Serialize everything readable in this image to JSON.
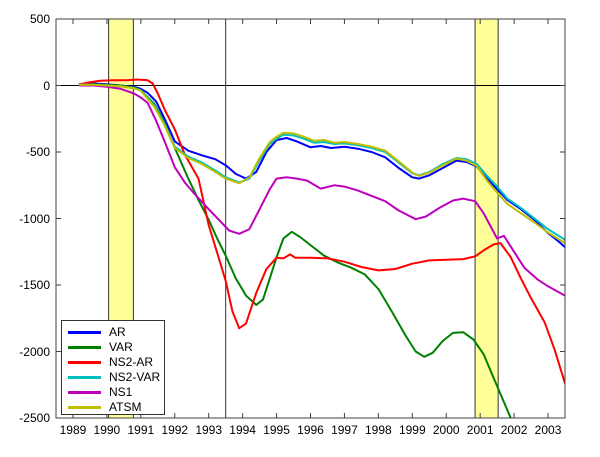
{
  "chart_data": {
    "type": "line",
    "title": "",
    "xlabel": "",
    "ylabel": "",
    "xlim": [
      1988.5,
      2003.5
    ],
    "ylim": [
      -2500,
      500
    ],
    "x_ticks": [
      "1989",
      "1990",
      "1991",
      "1992",
      "1993",
      "1994",
      "1995",
      "1996",
      "1997",
      "1998",
      "1999",
      "2000",
      "2001",
      "2002",
      "2003"
    ],
    "x_tick_values": [
      1989,
      1990,
      1991,
      1992,
      1993,
      1994,
      1995,
      1996,
      1997,
      1998,
      1999,
      2000,
      2001,
      2002,
      2003
    ],
    "y_ticks": [
      "500",
      "0",
      "-500",
      "-1000",
      "-1500",
      "-2000",
      "-2500"
    ],
    "y_tick_values": [
      500,
      0,
      -500,
      -1000,
      -1500,
      -2000,
      -2500
    ],
    "grid": false,
    "zero_line_value": 0,
    "vertical_reference_lines": [
      1993.5
    ],
    "shaded_bands": [
      {
        "from": 1990.05,
        "to": 1990.78,
        "color": "#FFFF99"
      },
      {
        "from": 2000.85,
        "to": 2001.53,
        "color": "#FFFF99"
      }
    ],
    "axis_color": "#404040",
    "zero_line_color": "#000000",
    "legend_position": "bottom-left",
    "series": [
      {
        "name": "AR",
        "color": "#0000FF",
        "points": [
          [
            1989.2,
            10
          ],
          [
            1989.6,
            15
          ],
          [
            1990,
            10
          ],
          [
            1990.4,
            0
          ],
          [
            1990.8,
            -10
          ],
          [
            1991,
            -25
          ],
          [
            1991.2,
            -55
          ],
          [
            1991.45,
            -120
          ],
          [
            1991.7,
            -250
          ],
          [
            1992,
            -420
          ],
          [
            1992.4,
            -490
          ],
          [
            1992.8,
            -525
          ],
          [
            1993.2,
            -555
          ],
          [
            1993.5,
            -600
          ],
          [
            1993.8,
            -665
          ],
          [
            1994.1,
            -700
          ],
          [
            1994.4,
            -650
          ],
          [
            1994.7,
            -500
          ],
          [
            1995,
            -410
          ],
          [
            1995.3,
            -395
          ],
          [
            1995.6,
            -420
          ],
          [
            1996,
            -465
          ],
          [
            1996.3,
            -455
          ],
          [
            1996.6,
            -470
          ],
          [
            1997,
            -460
          ],
          [
            1997.4,
            -475
          ],
          [
            1997.8,
            -500
          ],
          [
            1998.2,
            -540
          ],
          [
            1998.6,
            -620
          ],
          [
            1999,
            -690
          ],
          [
            1999.2,
            -700
          ],
          [
            1999.5,
            -675
          ],
          [
            1999.9,
            -620
          ],
          [
            2000.3,
            -565
          ],
          [
            2000.6,
            -575
          ],
          [
            2000.9,
            -610
          ],
          [
            2001.2,
            -700
          ],
          [
            2001.5,
            -780
          ],
          [
            2001.8,
            -860
          ],
          [
            2002.2,
            -930
          ],
          [
            2002.6,
            -1010
          ],
          [
            2003,
            -1110
          ],
          [
            2003.3,
            -1170
          ],
          [
            2003.5,
            -1215
          ]
        ]
      },
      {
        "name": "VAR",
        "color": "#008000",
        "points": [
          [
            1989.2,
            5
          ],
          [
            1989.6,
            10
          ],
          [
            1990,
            5
          ],
          [
            1990.4,
            0
          ],
          [
            1990.8,
            -15
          ],
          [
            1991,
            -35
          ],
          [
            1991.4,
            -140
          ],
          [
            1991.7,
            -280
          ],
          [
            1992,
            -470
          ],
          [
            1992.4,
            -700
          ],
          [
            1992.7,
            -860
          ],
          [
            1993,
            -1010
          ],
          [
            1993.25,
            -1150
          ],
          [
            1993.5,
            -1280
          ],
          [
            1993.8,
            -1450
          ],
          [
            1994.1,
            -1580
          ],
          [
            1994.4,
            -1650
          ],
          [
            1994.6,
            -1610
          ],
          [
            1994.8,
            -1450
          ],
          [
            1995,
            -1290
          ],
          [
            1995.2,
            -1150
          ],
          [
            1995.45,
            -1100
          ],
          [
            1995.7,
            -1140
          ],
          [
            1996,
            -1200
          ],
          [
            1996.4,
            -1280
          ],
          [
            1996.8,
            -1330
          ],
          [
            1997.2,
            -1370
          ],
          [
            1997.6,
            -1420
          ],
          [
            1998,
            -1530
          ],
          [
            1998.4,
            -1700
          ],
          [
            1998.8,
            -1880
          ],
          [
            1999.1,
            -2000
          ],
          [
            1999.35,
            -2040
          ],
          [
            1999.6,
            -2010
          ],
          [
            1999.9,
            -1920
          ],
          [
            2000.2,
            -1860
          ],
          [
            2000.5,
            -1855
          ],
          [
            2000.8,
            -1910
          ],
          [
            2001.1,
            -2020
          ],
          [
            2001.4,
            -2200
          ],
          [
            2001.7,
            -2380
          ],
          [
            2001.95,
            -2530
          ]
        ]
      },
      {
        "name": "NS2-AR",
        "color": "#FF0000",
        "points": [
          [
            1989.2,
            10
          ],
          [
            1989.5,
            25
          ],
          [
            1989.8,
            35
          ],
          [
            1990.2,
            40
          ],
          [
            1990.6,
            40
          ],
          [
            1990.9,
            45
          ],
          [
            1991.2,
            40
          ],
          [
            1991.35,
            15
          ],
          [
            1991.5,
            -60
          ],
          [
            1991.7,
            -180
          ],
          [
            1992,
            -330
          ],
          [
            1992.3,
            -520
          ],
          [
            1992.7,
            -700
          ],
          [
            1993,
            -1050
          ],
          [
            1993.3,
            -1300
          ],
          [
            1993.5,
            -1470
          ],
          [
            1993.7,
            -1700
          ],
          [
            1993.9,
            -1825
          ],
          [
            1994.1,
            -1790
          ],
          [
            1994.4,
            -1560
          ],
          [
            1994.7,
            -1380
          ],
          [
            1995,
            -1295
          ],
          [
            1995.2,
            -1300
          ],
          [
            1995.4,
            -1270
          ],
          [
            1995.55,
            -1295
          ],
          [
            1996,
            -1295
          ],
          [
            1996.5,
            -1300
          ],
          [
            1997,
            -1325
          ],
          [
            1997.5,
            -1365
          ],
          [
            1998,
            -1390
          ],
          [
            1998.5,
            -1380
          ],
          [
            1999,
            -1340
          ],
          [
            1999.5,
            -1315
          ],
          [
            2000,
            -1310
          ],
          [
            2000.5,
            -1305
          ],
          [
            2000.85,
            -1285
          ],
          [
            2001.1,
            -1240
          ],
          [
            2001.4,
            -1195
          ],
          [
            2001.6,
            -1185
          ],
          [
            2001.9,
            -1290
          ],
          [
            2002.2,
            -1450
          ],
          [
            2002.5,
            -1600
          ],
          [
            2002.9,
            -1780
          ],
          [
            2003.2,
            -1990
          ],
          [
            2003.5,
            -2240
          ]
        ]
      },
      {
        "name": "NS2-VAR",
        "color": "#00BFBF",
        "points": [
          [
            1989.2,
            5
          ],
          [
            1989.6,
            5
          ],
          [
            1990,
            0
          ],
          [
            1990.4,
            -5
          ],
          [
            1990.8,
            -20
          ],
          [
            1991,
            -35
          ],
          [
            1991.4,
            -150
          ],
          [
            1991.7,
            -290
          ],
          [
            1992,
            -460
          ],
          [
            1992.4,
            -535
          ],
          [
            1992.8,
            -580
          ],
          [
            1993.2,
            -640
          ],
          [
            1993.5,
            -690
          ],
          [
            1993.9,
            -730
          ],
          [
            1994.2,
            -700
          ],
          [
            1994.5,
            -560
          ],
          [
            1994.8,
            -440
          ],
          [
            1995,
            -400
          ],
          [
            1995.2,
            -370
          ],
          [
            1995.5,
            -375
          ],
          [
            1995.8,
            -400
          ],
          [
            1996.1,
            -430
          ],
          [
            1996.4,
            -425
          ],
          [
            1996.7,
            -440
          ],
          [
            1997,
            -435
          ],
          [
            1997.4,
            -450
          ],
          [
            1997.8,
            -470
          ],
          [
            1998.2,
            -500
          ],
          [
            1998.6,
            -580
          ],
          [
            1999,
            -660
          ],
          [
            1999.2,
            -675
          ],
          [
            1999.5,
            -650
          ],
          [
            1999.9,
            -590
          ],
          [
            2000.3,
            -545
          ],
          [
            2000.6,
            -555
          ],
          [
            2000.9,
            -590
          ],
          [
            2001.2,
            -680
          ],
          [
            2001.5,
            -760
          ],
          [
            2001.8,
            -850
          ],
          [
            2002.2,
            -920
          ],
          [
            2002.6,
            -1000
          ],
          [
            2003,
            -1080
          ],
          [
            2003.5,
            -1160
          ]
        ]
      },
      {
        "name": "NS1",
        "color": "#BF00BF",
        "points": [
          [
            1989.2,
            0
          ],
          [
            1989.6,
            0
          ],
          [
            1990,
            -10
          ],
          [
            1990.4,
            -25
          ],
          [
            1990.8,
            -60
          ],
          [
            1991,
            -90
          ],
          [
            1991.2,
            -130
          ],
          [
            1991.45,
            -265
          ],
          [
            1991.7,
            -420
          ],
          [
            1992,
            -615
          ],
          [
            1992.3,
            -730
          ],
          [
            1992.6,
            -820
          ],
          [
            1993,
            -930
          ],
          [
            1993.3,
            -1010
          ],
          [
            1993.6,
            -1090
          ],
          [
            1993.9,
            -1115
          ],
          [
            1994.2,
            -1080
          ],
          [
            1994.5,
            -930
          ],
          [
            1994.8,
            -780
          ],
          [
            1995,
            -700
          ],
          [
            1995.3,
            -690
          ],
          [
            1995.6,
            -700
          ],
          [
            1995.9,
            -715
          ],
          [
            1996.3,
            -775
          ],
          [
            1996.7,
            -750
          ],
          [
            1997,
            -760
          ],
          [
            1997.4,
            -790
          ],
          [
            1997.8,
            -830
          ],
          [
            1998.2,
            -870
          ],
          [
            1998.6,
            -940
          ],
          [
            1999.1,
            -1005
          ],
          [
            1999.4,
            -985
          ],
          [
            1999.8,
            -920
          ],
          [
            2000.2,
            -865
          ],
          [
            2000.5,
            -850
          ],
          [
            2000.85,
            -870
          ],
          [
            2001.1,
            -960
          ],
          [
            2001.5,
            -1150
          ],
          [
            2001.7,
            -1130
          ],
          [
            2002,
            -1250
          ],
          [
            2002.3,
            -1370
          ],
          [
            2002.7,
            -1460
          ],
          [
            2003,
            -1510
          ],
          [
            2003.5,
            -1580
          ]
        ]
      },
      {
        "name": "ATSM",
        "color": "#BFBF00",
        "points": [
          [
            1989.2,
            5
          ],
          [
            1989.6,
            5
          ],
          [
            1990,
            0
          ],
          [
            1990.4,
            -5
          ],
          [
            1990.8,
            -20
          ],
          [
            1991,
            -40
          ],
          [
            1991.4,
            -160
          ],
          [
            1991.7,
            -300
          ],
          [
            1992,
            -470
          ],
          [
            1992.4,
            -545
          ],
          [
            1992.8,
            -590
          ],
          [
            1993.2,
            -650
          ],
          [
            1993.5,
            -700
          ],
          [
            1993.9,
            -735
          ],
          [
            1994.2,
            -690
          ],
          [
            1994.5,
            -545
          ],
          [
            1994.8,
            -425
          ],
          [
            1995,
            -385
          ],
          [
            1995.2,
            -355
          ],
          [
            1995.5,
            -360
          ],
          [
            1995.8,
            -385
          ],
          [
            1996.1,
            -415
          ],
          [
            1996.4,
            -410
          ],
          [
            1996.7,
            -430
          ],
          [
            1997,
            -425
          ],
          [
            1997.4,
            -440
          ],
          [
            1997.8,
            -460
          ],
          [
            1998.2,
            -490
          ],
          [
            1998.6,
            -570
          ],
          [
            1999,
            -655
          ],
          [
            1999.2,
            -680
          ],
          [
            1999.5,
            -655
          ],
          [
            1999.9,
            -600
          ],
          [
            2000.3,
            -550
          ],
          [
            2000.6,
            -565
          ],
          [
            2000.9,
            -605
          ],
          [
            2001.2,
            -715
          ],
          [
            2001.5,
            -805
          ],
          [
            2001.8,
            -890
          ],
          [
            2002.2,
            -960
          ],
          [
            2002.6,
            -1030
          ],
          [
            2003,
            -1105
          ],
          [
            2003.5,
            -1185
          ]
        ]
      }
    ]
  }
}
